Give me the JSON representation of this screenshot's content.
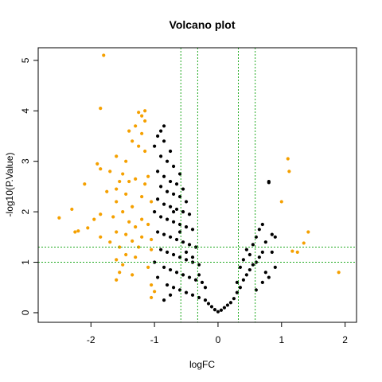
{
  "chart_data": {
    "type": "scatter",
    "title": "Volcano plot",
    "x_label": "logFC",
    "y_label": "-log10(P.Value)",
    "xlim": [
      -2.83,
      2.18
    ],
    "ylim": [
      -0.19,
      5.25
    ],
    "xticks": [
      -2,
      -1,
      0,
      1,
      2
    ],
    "yticks": [
      0,
      1,
      2,
      3,
      4,
      5
    ],
    "vlines": [
      -0.585,
      -0.32,
      0.32,
      0.585
    ],
    "hlines": [
      1,
      1.301
    ],
    "threshold_color": "#22aa22",
    "series": [
      {
        "color": "#000000",
        "x": [
          -0.85,
          -0.9,
          -0.95,
          -0.85,
          -1.0,
          -0.75,
          -0.9,
          -0.8,
          -0.7,
          -0.95,
          -0.6,
          -0.85,
          -0.75,
          -0.65,
          -0.9,
          -0.55,
          -0.8,
          -0.7,
          -0.6,
          -0.95,
          -0.5,
          -0.85,
          -0.75,
          -0.65,
          -0.55,
          -0.45,
          -0.9,
          -0.8,
          -0.7,
          -0.6,
          -0.5,
          -0.4,
          -0.95,
          -0.85,
          -0.75,
          -0.65,
          -0.55,
          -0.45,
          -0.35,
          -0.9,
          -0.8,
          -0.7,
          -0.6,
          -0.5,
          -0.4,
          -0.3,
          -0.85,
          -0.75,
          -0.65,
          -0.55,
          -0.45,
          -0.35,
          -0.25,
          -0.8,
          -0.7,
          -0.6,
          -0.5,
          -0.4,
          -0.3,
          -0.2,
          -0.15,
          -0.1,
          -0.05,
          0,
          -0.85,
          -0.75,
          0.05,
          0.1,
          0.15,
          0.2,
          0.25,
          0.3,
          0.35,
          0.3,
          0.4,
          0.45,
          0.5,
          0.35,
          0.55,
          0.6,
          0.4,
          0.65,
          0.5,
          0.7,
          0.45,
          0.55,
          0.75,
          0.6,
          0.85,
          0.9,
          0.65,
          0.7,
          0.8,
          0.8,
          0.6,
          0.7,
          0.8,
          0.9,
          0.85,
          0.75,
          -0.2,
          -0.3,
          -0.4,
          -1.0,
          -1.0,
          -0.95,
          -0.5,
          -0.6,
          -0.7
        ],
        "values": [
          3.7,
          3.6,
          3.5,
          3.4,
          3.3,
          3.2,
          3.1,
          3.0,
          2.9,
          2.8,
          2.75,
          2.7,
          2.6,
          2.55,
          2.5,
          2.45,
          2.4,
          2.35,
          2.3,
          2.25,
          2.2,
          2.15,
          2.1,
          2.05,
          2.0,
          1.95,
          1.9,
          1.85,
          1.8,
          1.75,
          1.7,
          1.65,
          1.6,
          1.55,
          1.5,
          1.45,
          1.4,
          1.35,
          1.3,
          1.25,
          1.2,
          1.15,
          1.1,
          1.05,
          1.0,
          0.95,
          0.9,
          0.85,
          0.8,
          0.75,
          0.7,
          0.65,
          0.6,
          0.55,
          0.5,
          0.45,
          0.4,
          0.35,
          0.3,
          0.25,
          0.18,
          0.12,
          0.06,
          0.02,
          0.25,
          0.35,
          0.05,
          0.1,
          0.15,
          0.2,
          0.28,
          0.4,
          0.5,
          0.6,
          0.65,
          0.75,
          0.85,
          0.9,
          0.95,
          1.0,
          1.05,
          1.1,
          1.15,
          1.2,
          1.25,
          1.35,
          1.4,
          1.5,
          1.55,
          1.5,
          1.65,
          1.75,
          2.6,
          2.58,
          0.45,
          0.6,
          0.7,
          0.9,
          1.2,
          0.8,
          0.5,
          0.75,
          1.1,
          2.0,
          1.0,
          0.7,
          1.2,
          1.6,
          2.0
        ]
      },
      {
        "color": "#f5a000",
        "x": [
          -1.8,
          -1.85,
          -1.15,
          -1.25,
          -1.2,
          -1.15,
          -1.3,
          -1.4,
          -1.2,
          -1.35,
          -1.25,
          -1.15,
          -1.6,
          -1.45,
          -1.9,
          -1.85,
          -1.7,
          -1.5,
          -1.1,
          -1.3,
          -1.55,
          -1.4,
          -1.15,
          -2.1,
          -1.6,
          -1.75,
          -1.45,
          -1.2,
          -1.6,
          -1.05,
          -1.35,
          -2.3,
          -1.5,
          -1.85,
          -1.65,
          -1.2,
          -2.5,
          -1.95,
          -1.4,
          -1.1,
          -1.3,
          -2.05,
          -2.2,
          -2.25,
          -1.6,
          -1.45,
          -1.2,
          -1.85,
          -1.05,
          -1.35,
          -1.7,
          -1.55,
          -1.25,
          -1.05,
          -1.45,
          -1.6,
          -1.3,
          -1.5,
          -1.1,
          -1.55,
          -1.35,
          -1.6,
          -1.05,
          -1.05,
          -1.0,
          1.1,
          1.12,
          1.0,
          1.42,
          1.35,
          1.17,
          1.25,
          1.9
        ],
        "values": [
          5.1,
          4.05,
          4.0,
          3.97,
          3.9,
          3.8,
          3.7,
          3.6,
          3.55,
          3.4,
          3.3,
          3.2,
          3.1,
          3.0,
          2.95,
          2.85,
          2.8,
          2.75,
          2.7,
          2.65,
          2.6,
          2.6,
          2.55,
          2.55,
          2.45,
          2.4,
          2.35,
          2.3,
          2.2,
          2.2,
          2.1,
          2.05,
          2.0,
          1.95,
          1.9,
          1.85,
          1.88,
          1.85,
          1.8,
          1.75,
          1.7,
          1.68,
          1.62,
          1.6,
          1.6,
          1.55,
          1.5,
          1.5,
          1.45,
          1.42,
          1.4,
          1.3,
          1.3,
          1.25,
          1.15,
          1.05,
          1.1,
          0.95,
          0.9,
          0.8,
          0.75,
          0.65,
          0.55,
          0.3,
          0.42,
          3.05,
          2.8,
          2.2,
          1.6,
          1.38,
          1.22,
          1.2,
          0.8
        ]
      }
    ]
  }
}
